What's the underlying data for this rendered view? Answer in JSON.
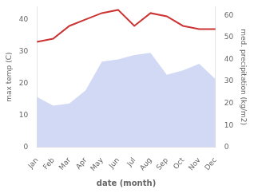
{
  "chart_data": {
    "type": "line",
    "xlabel": "date (month)",
    "ylabel": "max temp (C)",
    "y2label": "med. precipitation (kg/m2)",
    "categories": [
      "Jan",
      "Feb",
      "Mar",
      "Apr",
      "May",
      "Jun",
      "Jul",
      "Aug",
      "Sep",
      "Oct",
      "Nov",
      "Dec"
    ],
    "series": [
      {
        "type": "line",
        "color": "#cc3333",
        "values": [
          33,
          34,
          38,
          40,
          42,
          43,
          38,
          42,
          41,
          38,
          37,
          37
        ]
      },
      {
        "type": "area",
        "axis": "y2",
        "color": "#b8c4f0",
        "values": [
          23,
          19,
          20,
          26,
          39,
          40,
          42,
          43,
          33,
          35,
          38,
          31
        ]
      }
    ],
    "ylim": [
      0,
      44
    ],
    "yticks": [
      0,
      10,
      20,
      30,
      40
    ],
    "y2lim": [
      0,
      64
    ],
    "y2ticks": [
      0,
      10,
      20,
      30,
      40,
      50,
      60
    ],
    "grid": false
  }
}
